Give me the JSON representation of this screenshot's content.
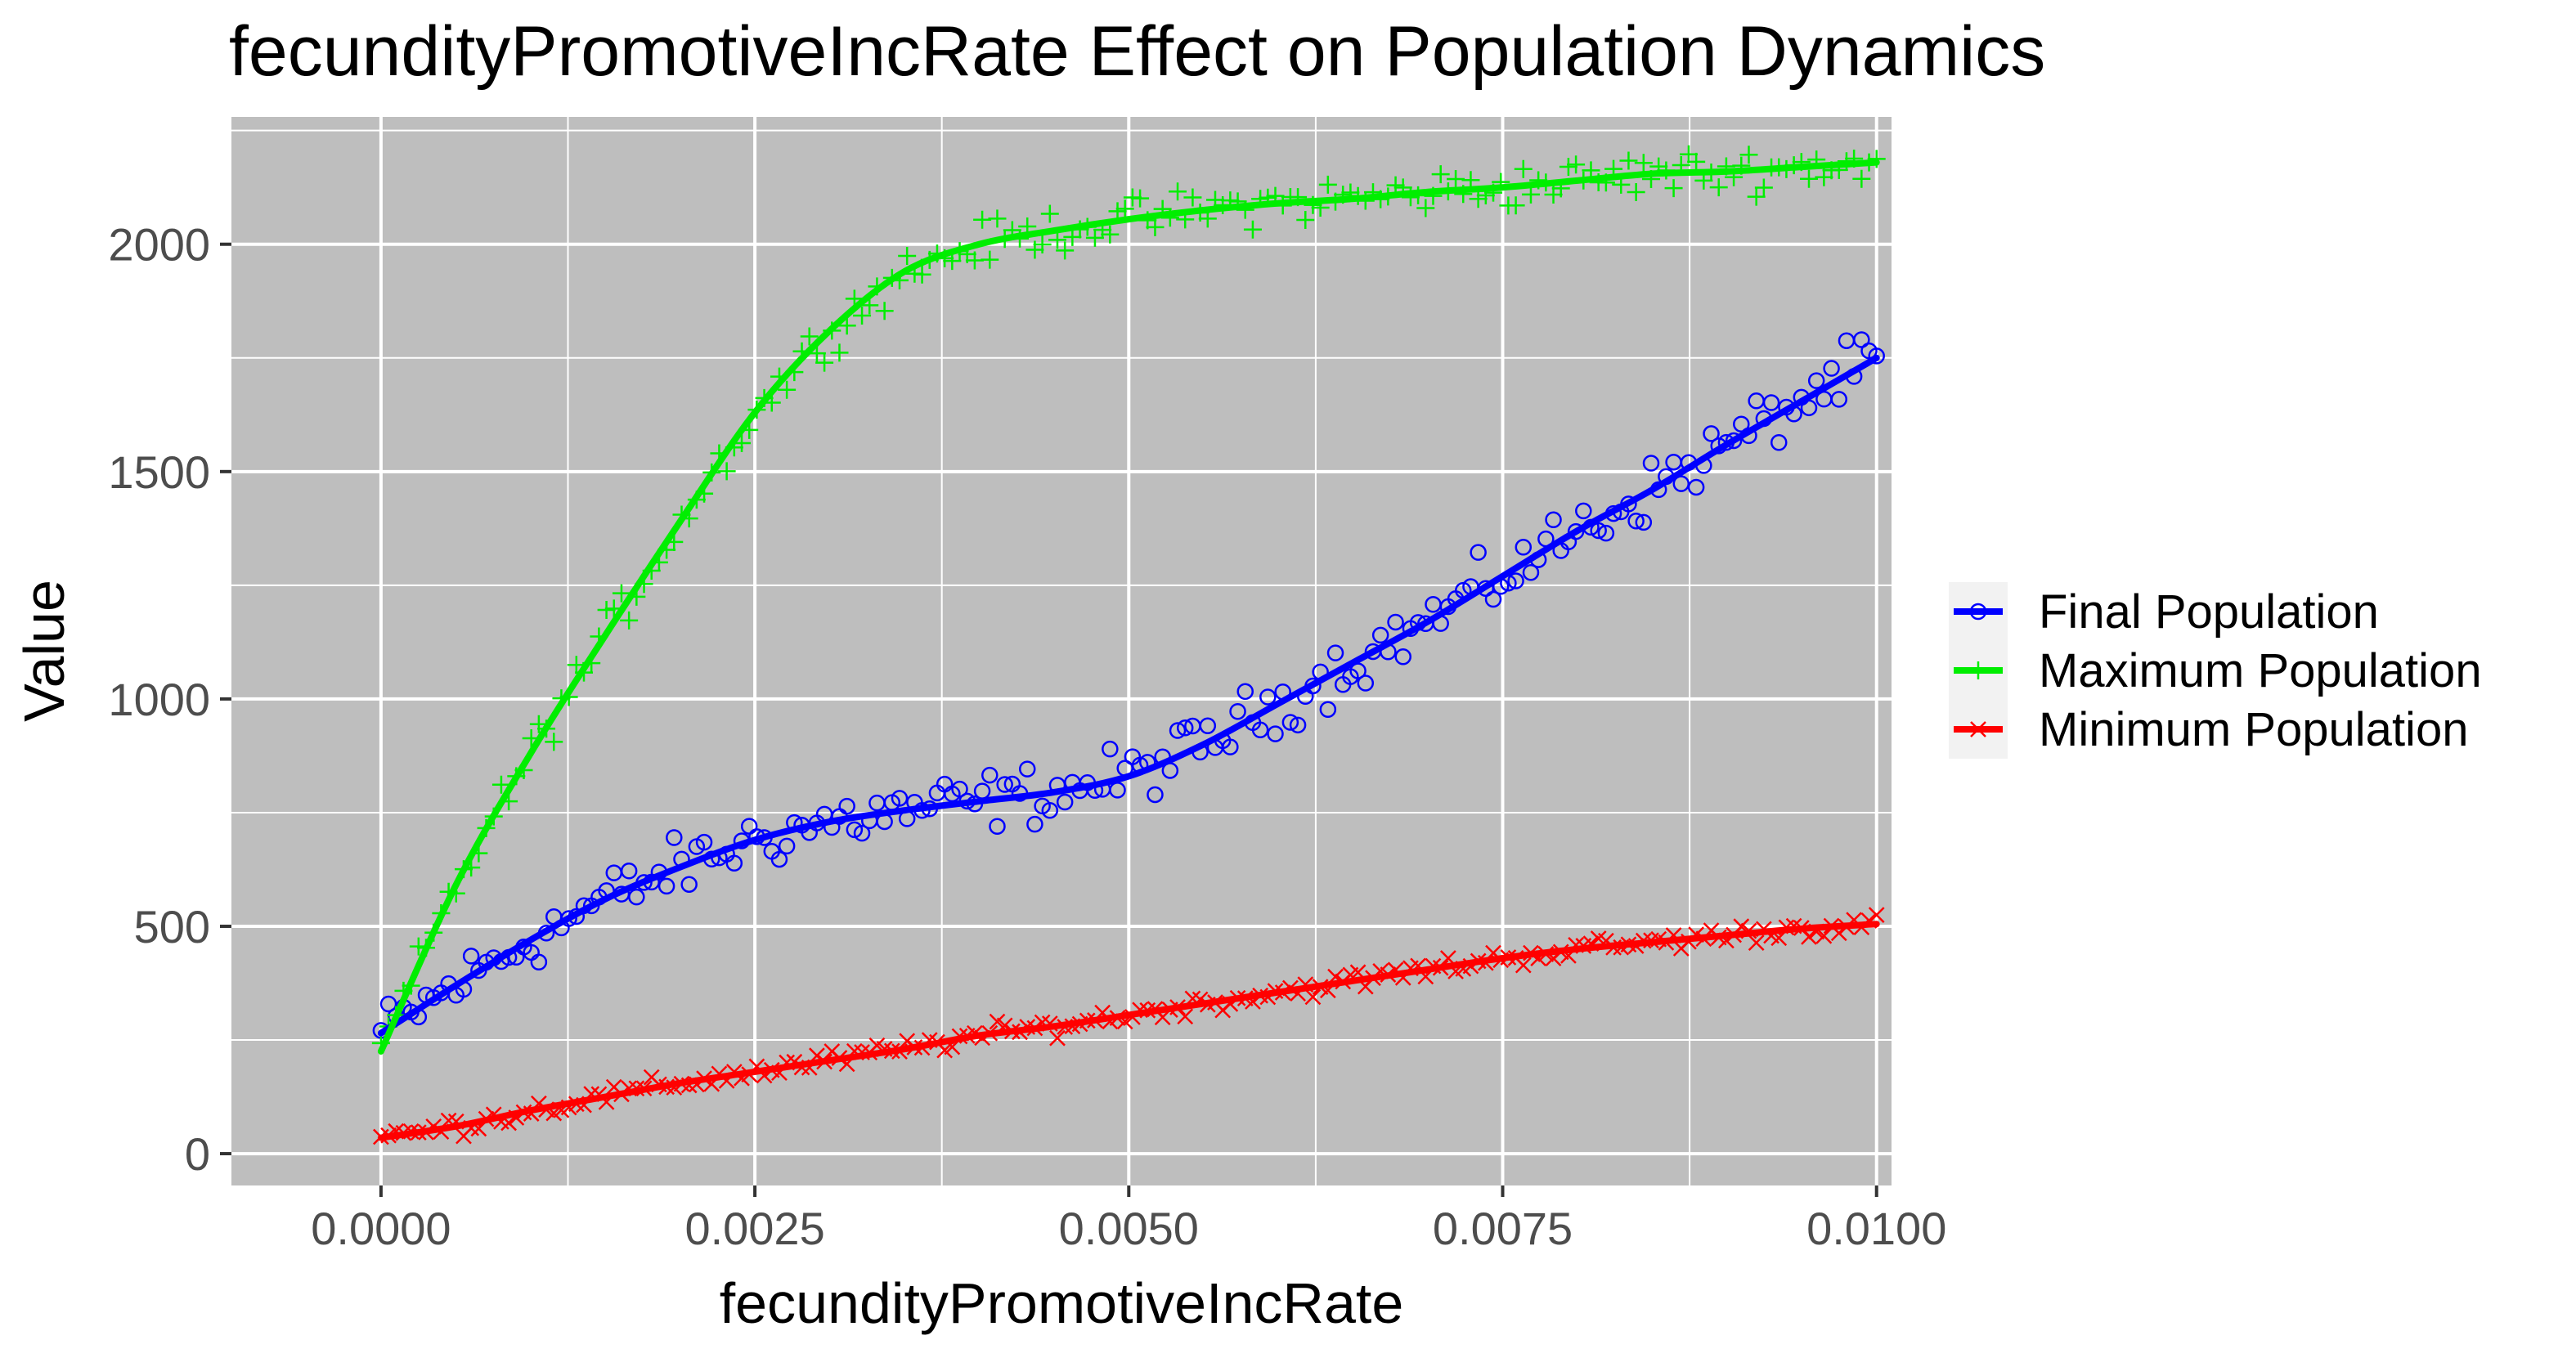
{
  "colors": {
    "panel_bg": "#bebebe",
    "grid": "#ffffff",
    "final": "#0000ff",
    "maximum": "#00ee00",
    "minimum": "#ff0000",
    "legend_key_bg": "#f2f2f2"
  },
  "chart_data": {
    "type": "scatter",
    "title": "fecundityPromotiveIncRate Effect on Population Dynamics",
    "xlabel": "fecundityPromotiveIncRate",
    "ylabel": "Value",
    "xlim": [
      -0.001,
      0.0101
    ],
    "ylim": [
      -70,
      2280
    ],
    "x_ticks": [
      0.0,
      0.0025,
      0.005,
      0.0075,
      0.01
    ],
    "x_tick_labels": [
      "0.0000",
      "0.0025",
      "0.0050",
      "0.0075",
      "0.0100"
    ],
    "y_ticks": [
      0,
      500,
      1000,
      1500,
      2000
    ],
    "y_tick_labels": [
      "0",
      "500",
      "1000",
      "1500",
      "2000"
    ],
    "grid": true,
    "legend_position": "right",
    "series": [
      {
        "name": "Final Population",
        "color": "#0000ff",
        "marker": "circle-open",
        "trend_x": [
          0.0,
          0.0005,
          0.001,
          0.0015,
          0.002,
          0.0025,
          0.003,
          0.0035,
          0.004,
          0.0045,
          0.005,
          0.0055,
          0.006,
          0.0065,
          0.007,
          0.0075,
          0.008,
          0.0085,
          0.009,
          0.0095,
          0.01
        ],
        "trend_y": [
          265,
          370,
          470,
          560,
          630,
          690,
          730,
          755,
          775,
          795,
          830,
          900,
          990,
          1080,
          1170,
          1270,
          1370,
          1460,
          1560,
          1655,
          1750
        ]
      },
      {
        "name": "Maximum Population",
        "color": "#00ee00",
        "marker": "plus",
        "trend_x": [
          0.0,
          0.0005,
          0.001,
          0.0015,
          0.002,
          0.0025,
          0.003,
          0.0035,
          0.004,
          0.0045,
          0.005,
          0.0055,
          0.006,
          0.0065,
          0.007,
          0.0075,
          0.008,
          0.0085,
          0.009,
          0.0095,
          0.01
        ],
        "trend_y": [
          225,
          590,
          880,
          1140,
          1390,
          1630,
          1810,
          1940,
          2000,
          2030,
          2055,
          2075,
          2090,
          2100,
          2115,
          2125,
          2140,
          2155,
          2160,
          2170,
          2180
        ]
      },
      {
        "name": "Minimum Population",
        "color": "#ff0000",
        "marker": "cross",
        "trend_x": [
          0.0,
          0.0005,
          0.001,
          0.0015,
          0.002,
          0.0025,
          0.003,
          0.0035,
          0.004,
          0.0045,
          0.005,
          0.0055,
          0.006,
          0.0065,
          0.007,
          0.0075,
          0.008,
          0.0085,
          0.009,
          0.0095,
          0.01
        ],
        "trend_y": [
          35,
          60,
          95,
          125,
          155,
          180,
          205,
          230,
          260,
          280,
          305,
          330,
          355,
          380,
          405,
          430,
          450,
          465,
          480,
          495,
          505
        ]
      }
    ]
  }
}
